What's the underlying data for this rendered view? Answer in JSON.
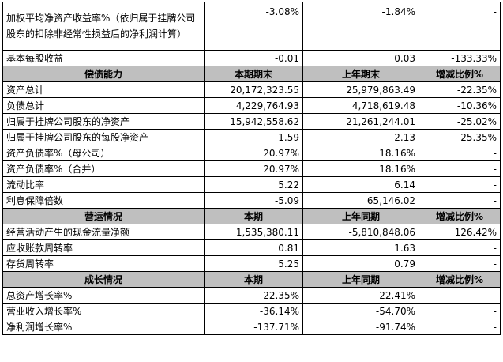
{
  "top_rows": [
    {
      "label": "加权平均净资产收益率%（依归属于挂牌公司股东的扣除非经常性损益后的净利润计算）",
      "current": "-3.08%",
      "previous": "-1.84%",
      "change": "-"
    },
    {
      "label": "基本每股收益",
      "current": "-0.01",
      "previous": "0.03",
      "change": "-133.33%"
    }
  ],
  "sections": [
    {
      "header": {
        "title": "偿债能力",
        "col1": "本期期末",
        "col2": "上年期末",
        "col3": "增减比例%"
      },
      "rows": [
        {
          "label": "资产总计",
          "current": "20,172,323.55",
          "previous": "25,979,863.49",
          "change": "-22.35%"
        },
        {
          "label": "负债总计",
          "current": "4,229,764.93",
          "previous": "4,718,619.48",
          "change": "-10.36%"
        },
        {
          "label": "归属于挂牌公司股东的净资产",
          "current": "15,942,558.62",
          "previous": "21,261,244.01",
          "change": "-25.02%"
        },
        {
          "label": "归属于挂牌公司股东的每股净资产",
          "current": "1.59",
          "previous": "2.13",
          "change": "-25.35%"
        },
        {
          "label": "资产负债率%（母公司）",
          "current": "20.97%",
          "previous": "18.16%",
          "change": "-"
        },
        {
          "label": "资产负债率%（合并）",
          "current": "20.97%",
          "previous": "18.16%",
          "change": "-"
        },
        {
          "label": "流动比率",
          "current": "5.22",
          "previous": "6.14",
          "change": "-"
        },
        {
          "label": "利息保障倍数",
          "current": "-5.09",
          "previous": "65,146.02",
          "change": "-"
        }
      ]
    },
    {
      "header": {
        "title": "营运情况",
        "col1": "本期",
        "col2": "上年同期",
        "col3": "增减比例%"
      },
      "rows": [
        {
          "label": "经营活动产生的现金流量净额",
          "current": "1,535,380.11",
          "previous": "-5,810,848.06",
          "change": "126.42%"
        },
        {
          "label": "应收账款周转率",
          "current": "0.81",
          "previous": "1.63",
          "change": "-"
        },
        {
          "label": "存货周转率",
          "current": "5.25",
          "previous": "0.79",
          "change": "-"
        }
      ]
    },
    {
      "header": {
        "title": "成长情况",
        "col1": "本期",
        "col2": "上年同期",
        "col3": "增减比例%"
      },
      "rows": [
        {
          "label": "总资产增长率%",
          "current": "-22.35%",
          "previous": "-22.41%",
          "change": "-"
        },
        {
          "label": "营业收入增长率%",
          "current": "-36.14%",
          "previous": "-54.70%",
          "change": "-"
        },
        {
          "label": "净利润增长率%",
          "current": "-137.71%",
          "previous": "-91.74%",
          "change": "-"
        }
      ]
    }
  ],
  "colors": {
    "section_header_bg": "#bfbfbf",
    "border": "#000000"
  }
}
